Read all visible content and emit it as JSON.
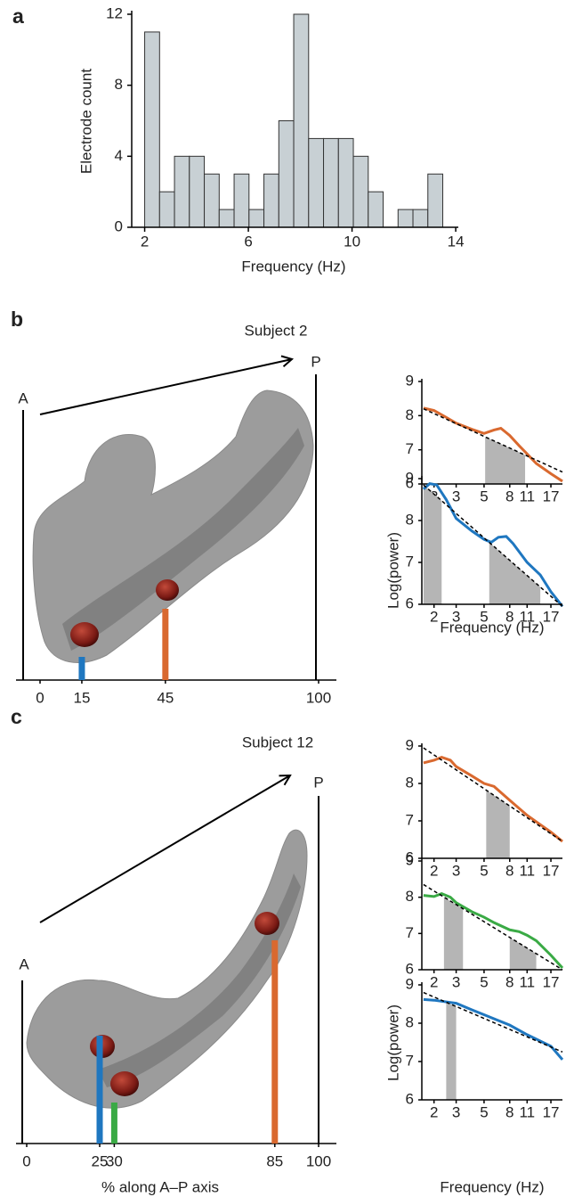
{
  "chart_data": [
    {
      "type": "hist",
      "panel_label": "a",
      "ylabel": "Electrode count",
      "xlabel": "Frequency (Hz)",
      "color": "#c8d0d4",
      "bins": [
        2,
        2.575,
        3.15,
        3.725,
        4.3,
        4.875,
        5.45,
        6.025,
        6.6,
        7.175,
        7.75,
        8.325,
        8.9,
        9.475,
        10.05,
        10.625,
        11.2,
        11.775,
        12.35,
        12.925,
        13.5
      ],
      "counts": [
        11,
        2,
        4,
        4,
        3,
        1,
        3,
        1,
        3,
        6,
        12,
        5,
        5,
        5,
        4,
        2,
        0,
        1,
        1,
        3
      ],
      "xlim": [
        1.5,
        14.1
      ],
      "ylim": [
        0,
        12.2
      ],
      "xticks": [
        2,
        6,
        10,
        14
      ],
      "yticks": [
        0,
        4,
        8,
        12
      ]
    },
    {
      "type": "ap",
      "panel_label": "b",
      "subject": "Subject 2",
      "anterior": "A",
      "posterior": "P",
      "xlim": [
        0,
        100
      ],
      "xticks": [
        0,
        15,
        45,
        100
      ],
      "electrodes": [
        {
          "position": 15,
          "color": "#1f77c0"
        },
        {
          "position": 45,
          "color": "#d9692f"
        }
      ]
    },
    {
      "type": "line",
      "xscale": "log",
      "xlim": [
        1.6,
        21
      ],
      "ylim": [
        6,
        9
      ],
      "xticks": [
        2,
        3,
        5,
        8,
        11,
        17
      ],
      "yticks": [
        6,
        7,
        8,
        9
      ],
      "x": [
        1.65,
        2,
        2.5,
        3,
        4,
        5,
        6,
        6.8,
        8,
        9.5,
        11,
        13,
        17,
        21
      ],
      "series": [
        {
          "color": "#d9692f",
          "values": [
            8.22,
            8.15,
            7.95,
            7.78,
            7.6,
            7.48,
            7.58,
            7.63,
            7.42,
            7.12,
            6.88,
            6.6,
            6.3,
            6.08
          ]
        }
      ],
      "fit": {
        "x": [
          1.65,
          21
        ],
        "values": [
          8.2,
          6.35
        ]
      },
      "bands": [
        [
          5.1,
          10.6
        ]
      ]
    },
    {
      "type": "line",
      "xscale": "log",
      "xlim": [
        1.6,
        21
      ],
      "ylim": [
        6,
        9
      ],
      "xticks": [
        2,
        3,
        5,
        8,
        11,
        17
      ],
      "yticks": [
        6,
        7,
        8,
        9
      ],
      "ylabel": "Log(power)",
      "xlabel": "Frequency (Hz)",
      "x": [
        1.65,
        1.85,
        2.1,
        2.5,
        3,
        4,
        5,
        5.7,
        6.5,
        7.5,
        8.5,
        11,
        14,
        17,
        21
      ],
      "series": [
        {
          "color": "#1f77c0",
          "values": [
            8.75,
            8.88,
            8.85,
            8.5,
            8.05,
            7.75,
            7.55,
            7.48,
            7.6,
            7.62,
            7.45,
            7.0,
            6.7,
            6.3,
            5.95
          ]
        }
      ],
      "fit": {
        "x": [
          1.65,
          21
        ],
        "values": [
          8.85,
          5.95
        ]
      },
      "bands": [
        [
          1.65,
          2.3
        ],
        [
          5.5,
          14
        ]
      ]
    },
    {
      "type": "ap",
      "panel_label": "c",
      "subject": "Subject 12",
      "anterior": "A",
      "posterior": "P",
      "xlabel": "% along A–P axis",
      "xlim": [
        0,
        100
      ],
      "xticks": [
        0,
        25,
        30,
        85,
        100
      ],
      "electrodes": [
        {
          "position": 25,
          "color": "#1f77c0"
        },
        {
          "position": 30,
          "color": "#3aaa45"
        },
        {
          "position": 85,
          "color": "#d9692f"
        }
      ]
    },
    {
      "type": "line",
      "xscale": "log",
      "xlim": [
        1.6,
        21
      ],
      "ylim": [
        6,
        9
      ],
      "xticks": [
        2,
        3,
        5,
        8,
        11,
        17
      ],
      "yticks": [
        6,
        7,
        8,
        9
      ],
      "x": [
        1.65,
        2,
        2.3,
        2.7,
        3,
        4,
        5,
        6,
        8,
        11,
        14,
        17,
        21
      ],
      "series": [
        {
          "color": "#d9692f",
          "values": [
            8.55,
            8.62,
            8.7,
            8.62,
            8.45,
            8.2,
            8.0,
            7.92,
            7.55,
            7.15,
            6.9,
            6.7,
            6.45
          ]
        }
      ],
      "fit": {
        "x": [
          1.65,
          21
        ],
        "values": [
          8.95,
          6.45
        ]
      },
      "bands": [
        [
          5.2,
          8
        ]
      ]
    },
    {
      "type": "line",
      "xscale": "log",
      "xlim": [
        1.6,
        21
      ],
      "ylim": [
        6,
        9
      ],
      "xticks": [
        2,
        3,
        5,
        8,
        11,
        17
      ],
      "yticks": [
        6,
        7,
        8,
        9
      ],
      "x": [
        1.65,
        2,
        2.3,
        2.7,
        3,
        4,
        5,
        6,
        8,
        9.5,
        11,
        13,
        17,
        21
      ],
      "series": [
        {
          "color": "#3aaa45",
          "values": [
            8.05,
            8.02,
            8.1,
            8.0,
            7.85,
            7.6,
            7.45,
            7.3,
            7.1,
            7.05,
            6.95,
            6.8,
            6.4,
            6.05
          ]
        }
      ],
      "fit": {
        "x": [
          1.65,
          21
        ],
        "values": [
          8.35,
          6.0
        ]
      },
      "bands": [
        [
          2.4,
          3.4
        ],
        [
          8,
          13
        ]
      ]
    },
    {
      "type": "line",
      "xscale": "log",
      "xlim": [
        1.6,
        21
      ],
      "ylim": [
        6,
        9
      ],
      "xticks": [
        2,
        3,
        5,
        8,
        11,
        17
      ],
      "yticks": [
        6,
        7,
        8,
        9
      ],
      "ylabel": "Log(power)",
      "xlabel": "Frequency (Hz)",
      "x": [
        1.65,
        2,
        3,
        4,
        5,
        8,
        11,
        17,
        21
      ],
      "series": [
        {
          "color": "#1f77c0",
          "values": [
            8.62,
            8.6,
            8.52,
            8.35,
            8.22,
            7.95,
            7.7,
            7.4,
            7.05
          ]
        }
      ],
      "fit": {
        "x": [
          1.65,
          21
        ],
        "values": [
          8.8,
          7.25
        ]
      },
      "bands": [
        [
          2.5,
          3
        ]
      ]
    }
  ]
}
